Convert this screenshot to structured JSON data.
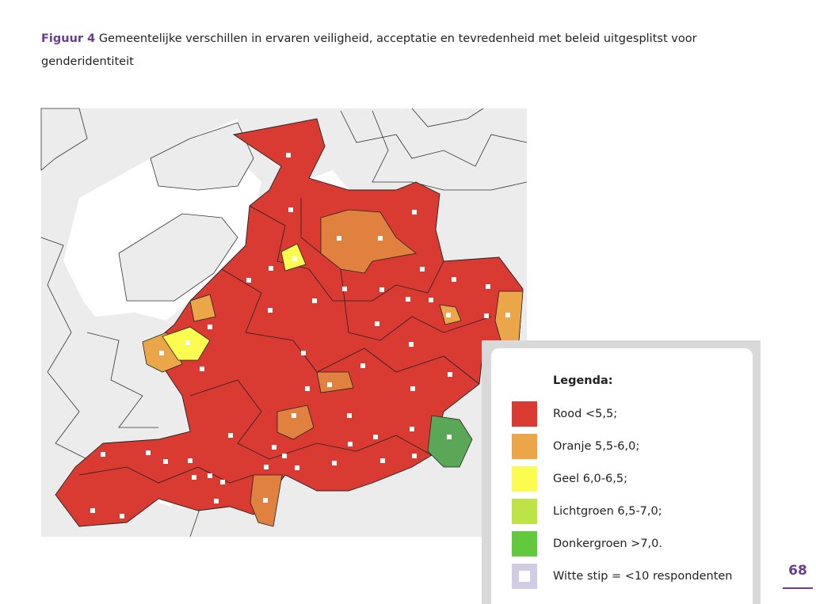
{
  "caption": {
    "label": "Figuur 4",
    "text_line1": "Gemeentelijke verschillen in ervaren veiligheid, acceptatie en tevredenheid met beleid uitgesplitst voor",
    "text_line2": "genderidentiteit"
  },
  "legend": {
    "title": "Legenda:",
    "items": [
      {
        "label": "Rood <5,5;",
        "color": "#d93a32"
      },
      {
        "label": "Oranje 5,5-6,0;",
        "color": "#eba64a"
      },
      {
        "label": "Geel 6,0-6,5;",
        "color": "#fbfb50"
      },
      {
        "label": "Lichtgroen 6,5-7,0;",
        "color": "#bde346"
      },
      {
        "label": "Donkergroen >7,0.",
        "color": "#62c83e"
      },
      {
        "label": "Witte stip = <10 respondenten",
        "color": "#d1cbe5"
      }
    ]
  },
  "page_number": "68"
}
